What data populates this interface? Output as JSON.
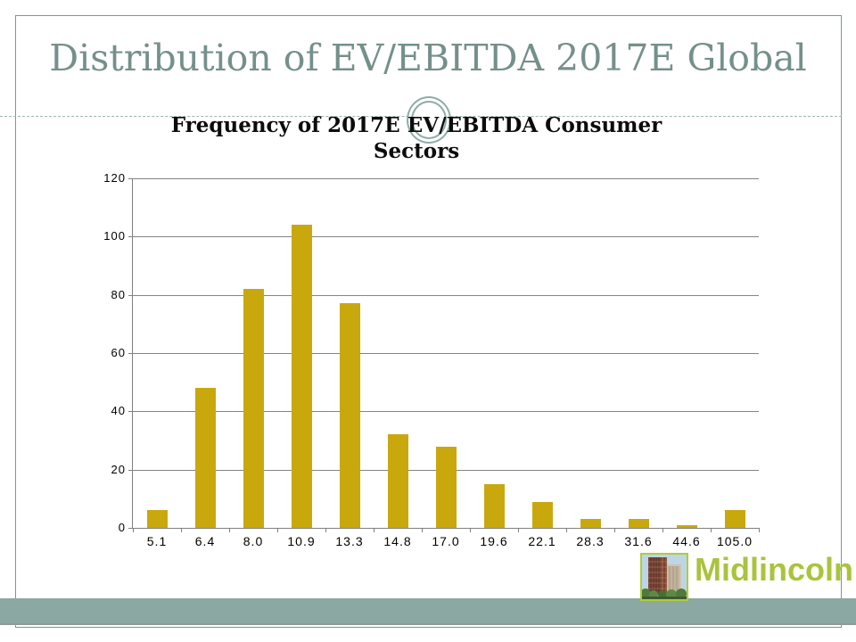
{
  "slide": {
    "title": "Distribution of EV/EBITDA 2017E Global",
    "title_color": "#75908B",
    "frame_color": "#7C9894"
  },
  "chart_data": {
    "type": "bar",
    "title": "Frequency of 2017E EV/EBITDA Consumer Sectors",
    "title_line1": "Frequency of 2017E EV/EBITDA Consumer",
    "title_line2": "Sectors",
    "categories": [
      "5.1",
      "6.4",
      "8.0",
      "10.9",
      "13.3",
      "14.8",
      "17.0",
      "19.6",
      "22.1",
      "28.3",
      "31.6",
      "44.6",
      "105.0"
    ],
    "values": [
      6,
      48,
      82,
      104,
      77,
      32,
      28,
      15,
      9,
      3,
      3,
      1,
      6
    ],
    "xlabel": "",
    "ylabel": "",
    "y_ticks": [
      0,
      20,
      40,
      60,
      80,
      100,
      120
    ],
    "ylim": [
      0,
      120
    ],
    "grid": true,
    "legend": false,
    "bar_color": "#C9A80E",
    "gridline_color": "#848484",
    "axis_color": "#808080"
  },
  "footer": {
    "brand": "Midlincoln",
    "brand_color": "#A9C43C",
    "band_color": "#8BA8A3",
    "logo_icon": "building-icon"
  }
}
